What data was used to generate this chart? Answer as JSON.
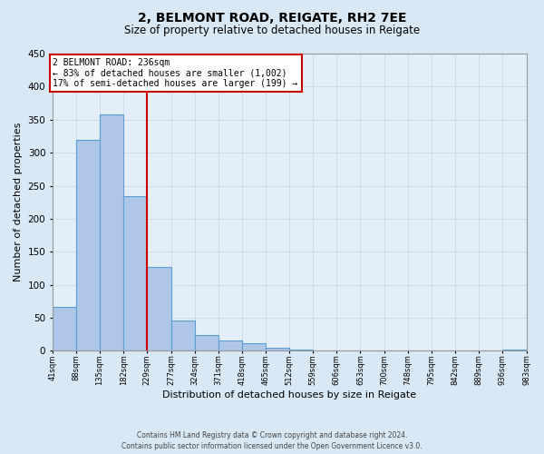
{
  "title": "2, BELMONT ROAD, REIGATE, RH2 7EE",
  "subtitle": "Size of property relative to detached houses in Reigate",
  "xlabel": "Distribution of detached houses by size in Reigate",
  "ylabel": "Number of detached properties",
  "footer_lines": [
    "Contains HM Land Registry data © Crown copyright and database right 2024.",
    "Contains public sector information licensed under the Open Government Licence v3.0."
  ],
  "bar_edges": [
    41,
    88,
    135,
    182,
    229,
    277,
    324,
    371,
    418,
    465,
    512,
    559,
    606,
    653,
    700,
    748,
    795,
    842,
    889,
    936,
    983
  ],
  "bar_heights": [
    67,
    320,
    358,
    234,
    127,
    46,
    24,
    16,
    11,
    5,
    2,
    1,
    1,
    1,
    0,
    0,
    0,
    0,
    0,
    2
  ],
  "bar_color": "#aec6e8",
  "bar_edge_color": "#5a9fd4",
  "property_line_x": 229,
  "annotation_title": "2 BELMONT ROAD: 236sqm",
  "annotation_line1": "← 83% of detached houses are smaller (1,002)",
  "annotation_line2": "17% of semi-detached houses are larger (199) →",
  "annotation_box_color": "#ffffff",
  "annotation_box_edgecolor": "#cc0000",
  "vline_color": "#cc0000",
  "ylim": [
    0,
    450
  ],
  "yticks": [
    0,
    50,
    100,
    150,
    200,
    250,
    300,
    350,
    400,
    450
  ],
  "grid_color": "#c8d8ec",
  "background_color": "#d8e8f4",
  "plot_background_color": "#e4eef8",
  "tick_labels": [
    "41sqm",
    "88sqm",
    "135sqm",
    "182sqm",
    "229sqm",
    "277sqm",
    "324sqm",
    "371sqm",
    "418sqm",
    "465sqm",
    "512sqm",
    "559sqm",
    "606sqm",
    "653sqm",
    "700sqm",
    "748sqm",
    "795sqm",
    "842sqm",
    "889sqm",
    "936sqm",
    "983sqm"
  ]
}
